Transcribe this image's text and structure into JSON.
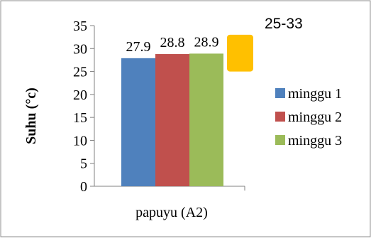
{
  "chart_data": {
    "type": "bar",
    "categories": [
      "papuyu (A2)"
    ],
    "series": [
      {
        "name": "minggu 1",
        "values": [
          27.9
        ],
        "color": "#4F81BD"
      },
      {
        "name": "minggu 2",
        "values": [
          28.8
        ],
        "color": "#C0504D"
      },
      {
        "name": "minggu 3",
        "values": [
          28.9
        ],
        "color": "#9BBB59"
      }
    ],
    "data_labels": [
      "27.9",
      "28.8",
      "28.9"
    ],
    "ylabel": "Suhu (°c)",
    "xlabel": "",
    "ylim": [
      0,
      35
    ],
    "yticks": [
      0,
      5,
      10,
      15,
      20,
      25,
      30,
      35
    ],
    "grid": false,
    "legend_position": "right",
    "annotation": {
      "text": "25-33",
      "range": [
        25,
        33
      ],
      "color": "#FFC000"
    }
  }
}
